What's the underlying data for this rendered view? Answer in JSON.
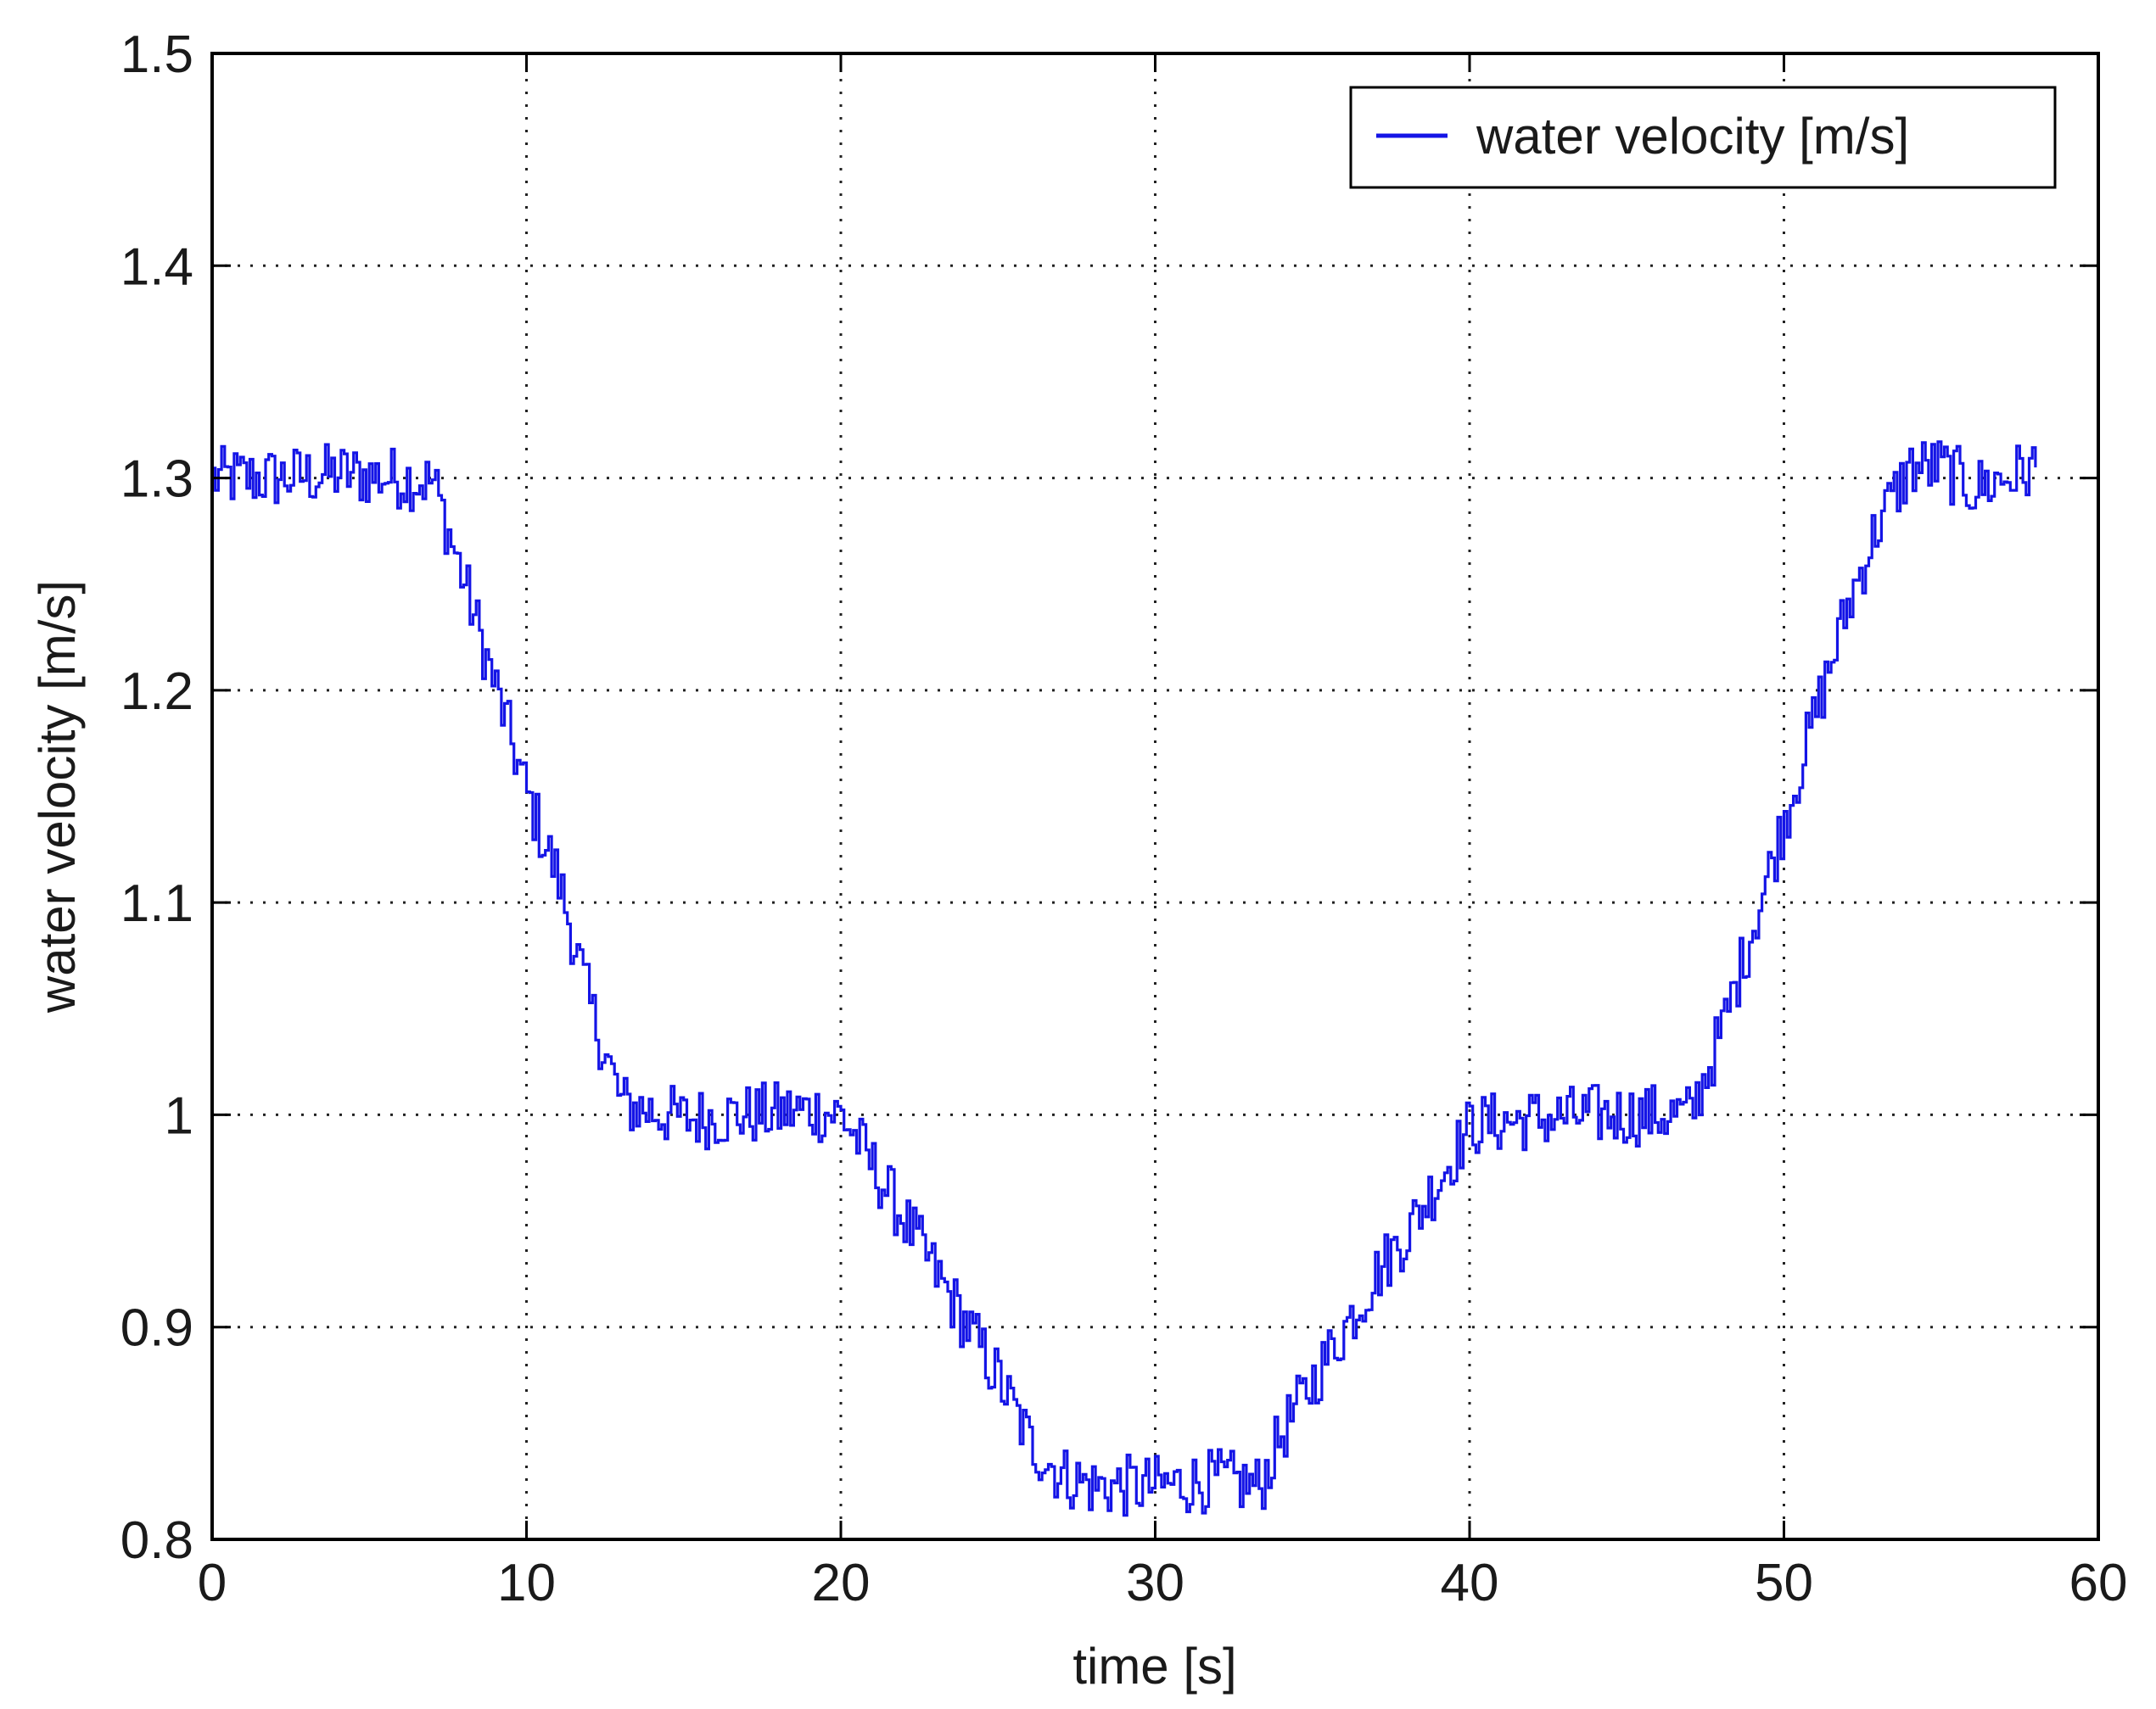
{
  "chart_data": {
    "type": "line",
    "title": "",
    "xlabel": "time [s]",
    "ylabel": "water velocity [m/s]",
    "xlim": [
      0,
      60
    ],
    "ylim": [
      0.8,
      1.5
    ],
    "xticks": [
      0,
      10,
      20,
      30,
      40,
      50,
      60
    ],
    "xtick_labels": [
      "0",
      "10",
      "20",
      "30",
      "40",
      "50",
      "60"
    ],
    "yticks": [
      0.8,
      0.9,
      1.0,
      1.1,
      1.2,
      1.3,
      1.4,
      1.5
    ],
    "ytick_labels": [
      "0.8",
      "0.9",
      "1",
      "1.1",
      "1.2",
      "1.3",
      "1.4",
      "1.5"
    ],
    "grid": true,
    "legend": {
      "position": "top-right",
      "entries": [
        "water velocity [m/s]"
      ]
    },
    "series": [
      {
        "name": "water velocity [m/s]",
        "color": "#1414e6",
        "x": [
          0,
          2,
          4,
          6,
          7,
          8,
          9,
          10,
          11,
          12,
          13,
          15,
          17,
          19,
          20,
          21,
          22,
          23,
          24,
          25,
          26,
          27,
          28,
          30,
          32,
          33.3,
          34,
          35,
          36,
          37,
          38,
          39,
          40,
          42,
          44,
          46,
          47,
          48,
          49,
          50,
          51,
          52,
          53,
          54,
          55,
          56,
          57,
          58
        ],
        "y": [
          1.3,
          1.3,
          1.302,
          1.3,
          1.298,
          1.25,
          1.2,
          1.15,
          1.11,
          1.05,
          1.005,
          0.998,
          1.0,
          1.002,
          1.0,
          0.975,
          0.95,
          0.925,
          0.9,
          0.875,
          0.845,
          0.83,
          0.825,
          0.825,
          0.828,
          0.825,
          0.85,
          0.875,
          0.9,
          0.925,
          0.945,
          0.97,
          0.995,
          0.998,
          1.0,
          1.0,
          1.0,
          1.04,
          1.09,
          1.14,
          1.19,
          1.24,
          1.28,
          1.305,
          1.305,
          1.295,
          1.3,
          1.305
        ]
      }
    ]
  }
}
